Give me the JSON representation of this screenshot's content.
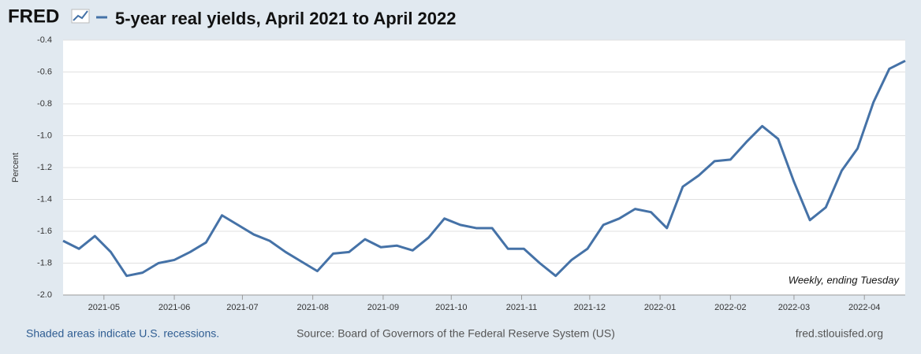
{
  "logo": "FRED",
  "chart_data": {
    "type": "line",
    "title": "5-year real yields, April 2021 to April 2022",
    "y_label": "Percent",
    "annotation": "Weekly, ending Tuesday",
    "series": [
      {
        "name": "5-year real yields, April 2021 to April 2022",
        "color": "#4572a7",
        "values": [
          -1.66,
          -1.71,
          -1.63,
          -1.73,
          -1.88,
          -1.86,
          -1.8,
          -1.78,
          -1.73,
          -1.67,
          -1.5,
          -1.56,
          -1.62,
          -1.66,
          -1.73,
          -1.79,
          -1.85,
          -1.74,
          -1.73,
          -1.65,
          -1.7,
          -1.69,
          -1.72,
          -1.64,
          -1.52,
          -1.56,
          -1.58,
          -1.58,
          -1.71,
          -1.71,
          -1.8,
          -1.88,
          -1.78,
          -1.71,
          -1.56,
          -1.52,
          -1.46,
          -1.48,
          -1.58,
          -1.32,
          -1.25,
          -1.16,
          -1.15,
          -1.04,
          -0.94,
          -1.02,
          -1.29,
          -1.53,
          -1.45,
          -1.22,
          -1.08,
          -0.79,
          -0.58,
          -0.53
        ]
      }
    ],
    "xlim": [
      0,
      53
    ],
    "xticks": [
      {
        "value": 2.571,
        "label": "2021-05"
      },
      {
        "value": 7,
        "label": "2021-06"
      },
      {
        "value": 11.286,
        "label": "2021-07"
      },
      {
        "value": 15.714,
        "label": "2021-08"
      },
      {
        "value": 20.143,
        "label": "2021-09"
      },
      {
        "value": 24.429,
        "label": "2021-10"
      },
      {
        "value": 28.857,
        "label": "2021-11"
      },
      {
        "value": 33.143,
        "label": "2021-12"
      },
      {
        "value": 37.571,
        "label": "2022-01"
      },
      {
        "value": 42,
        "label": "2022-02"
      },
      {
        "value": 46,
        "label": "2022-03"
      },
      {
        "value": 50.429,
        "label": "2022-04"
      }
    ],
    "ylim": [
      -2.0,
      -0.4
    ],
    "yticks": [
      {
        "value": -2.0,
        "label": "-2.0"
      },
      {
        "value": -1.8,
        "label": "-1.8"
      },
      {
        "value": -1.6,
        "label": "-1.6"
      },
      {
        "value": -1.4,
        "label": "-1.4"
      },
      {
        "value": -1.2,
        "label": "-1.2"
      },
      {
        "value": -1.0,
        "label": "-1.0"
      },
      {
        "value": -0.8,
        "label": "-0.8"
      },
      {
        "value": -0.6,
        "label": "-0.6"
      },
      {
        "value": -0.4,
        "label": "-0.4"
      }
    ],
    "grid": true
  },
  "footer": {
    "left": "Shaded areas indicate U.S. recessions.",
    "center": "Source: Board of Governors of the Federal Reserve System (US)",
    "right": "fred.stlouisfed.org"
  }
}
